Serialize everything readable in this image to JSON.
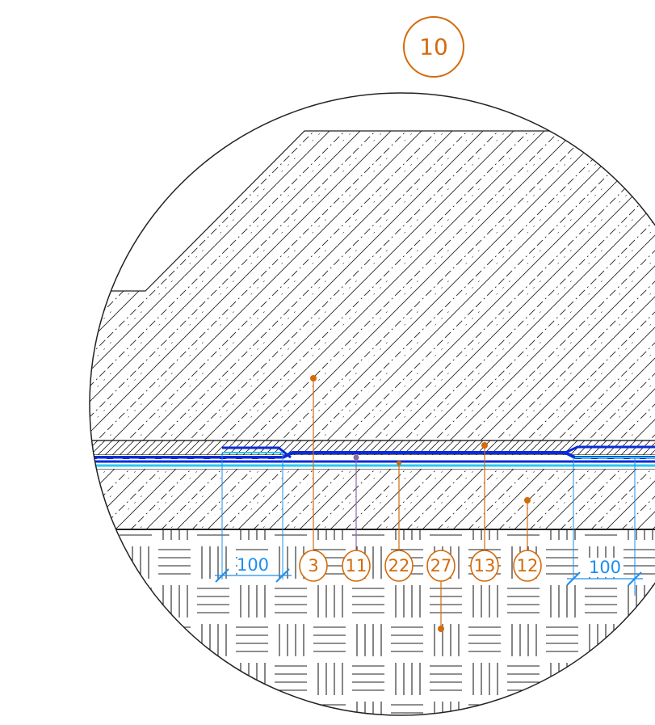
{
  "detail": {
    "number": "10"
  },
  "dimensions": [
    {
      "id": "dim-left",
      "value": "100"
    },
    {
      "id": "dim-right",
      "value": "100"
    }
  ],
  "callouts": [
    {
      "id": "callout-3",
      "label": "3"
    },
    {
      "id": "callout-11",
      "label": "11"
    },
    {
      "id": "callout-22",
      "label": "22"
    },
    {
      "id": "callout-27",
      "label": "27"
    },
    {
      "id": "callout-13",
      "label": "13"
    },
    {
      "id": "callout-12",
      "label": "12"
    }
  ],
  "colors": {
    "callout": "#d36b0c",
    "dimension": "#1c8ff0",
    "membrane_dark": "#0a2bd6",
    "membrane_light": "#28c8f0",
    "hatch": "#222222"
  },
  "hatch_patterns": {
    "upper_slab": "concrete-diagonal",
    "screed": "diagonal-tight",
    "lower_slab": "concrete-diagonal",
    "base": "basket-weave"
  }
}
